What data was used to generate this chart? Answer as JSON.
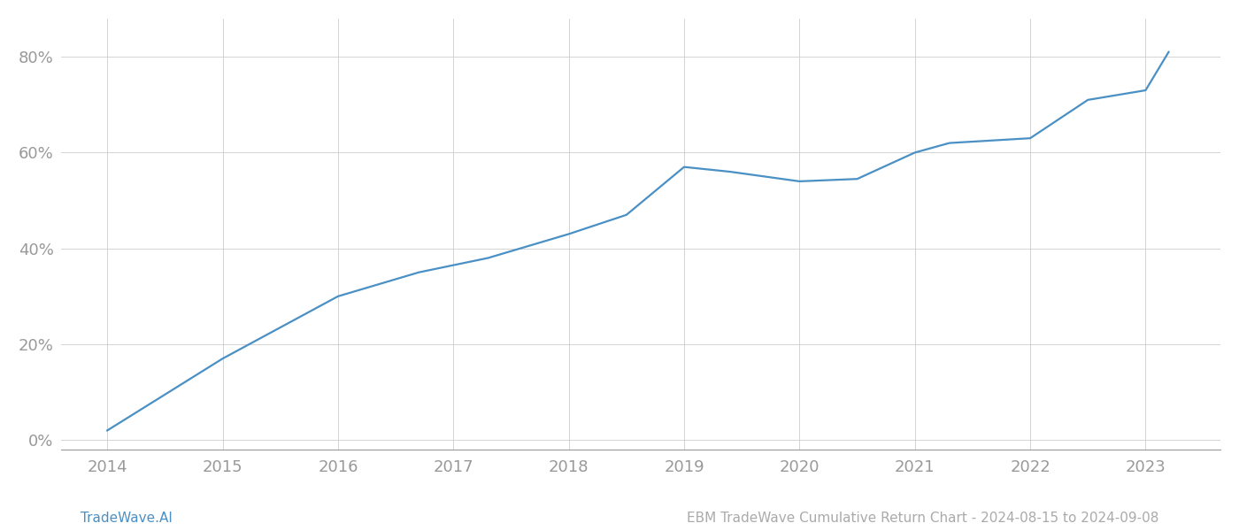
{
  "x": [
    2014,
    2015,
    2016,
    2016.7,
    2017.3,
    2018,
    2018.5,
    2019,
    2019.4,
    2020,
    2020.5,
    2021,
    2021.3,
    2022,
    2022.5,
    2023,
    2023.2
  ],
  "y": [
    0.02,
    0.17,
    0.3,
    0.35,
    0.38,
    0.43,
    0.47,
    0.57,
    0.56,
    0.54,
    0.545,
    0.6,
    0.62,
    0.63,
    0.71,
    0.73,
    0.81
  ],
  "line_color": "#4a90c4",
  "background_color": "#ffffff",
  "grid_color": "#cccccc",
  "tick_color": "#999999",
  "ylabel_ticks": [
    0.0,
    0.2,
    0.4,
    0.6,
    0.8
  ],
  "ylabel_labels": [
    "0%",
    "20%",
    "40%",
    "60%",
    "80%"
  ],
  "xticks": [
    2014,
    2015,
    2016,
    2017,
    2018,
    2019,
    2020,
    2021,
    2022,
    2023
  ],
  "xlim": [
    2013.6,
    2023.65
  ],
  "ylim": [
    -0.02,
    0.88
  ],
  "footer_left": "TradeWave.AI",
  "footer_right": "EBM TradeWave Cumulative Return Chart - 2024-08-15 to 2024-09-08",
  "footer_color": "#aaaaaa",
  "footer_left_color": "#4a90c4",
  "line_width": 1.6,
  "tick_fontsize": 13,
  "footer_fontsize": 11
}
